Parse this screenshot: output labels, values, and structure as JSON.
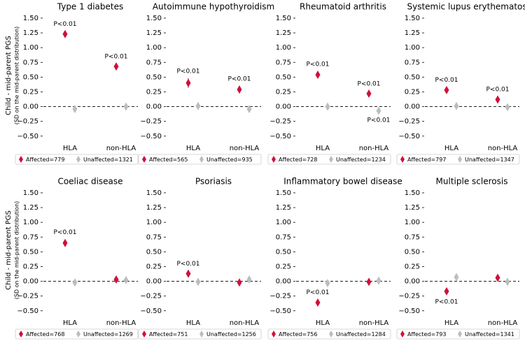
{
  "chart_data": [
    {
      "type": "scatter",
      "title": "Type 1 diabetes",
      "ylabel": [
        "Child - mid-parent PGS",
        "(SD on the mid-parent distribution)"
      ],
      "categories": [
        "HLA",
        "non-HLA"
      ],
      "series": [
        {
          "name": "Affected=779",
          "color": "#d0103a",
          "values": [
            1.23,
            0.68
          ],
          "errors": [
            0.05,
            0.05
          ]
        },
        {
          "name": "Unaffected=1321",
          "color": "#bdbdbd",
          "values": [
            -0.04,
            0.0
          ],
          "errors": [
            0.03,
            0.03
          ]
        }
      ],
      "annotations": [
        {
          "text": "P<0.01",
          "category": "HLA",
          "series": "Affected=779",
          "position": "above"
        },
        {
          "text": "P<0.01",
          "category": "non-HLA",
          "series": "Affected=779",
          "position": "above"
        }
      ],
      "ylim": [
        -0.55,
        1.6
      ],
      "yticks": [
        {
          "value": 1.5,
          "label": "1.50"
        },
        {
          "value": 1.25,
          "label": "1.25"
        },
        {
          "value": 1.0,
          "label": "1.00"
        },
        {
          "value": 0.75,
          "label": "0.75"
        },
        {
          "value": 0.5,
          "label": "0.50"
        },
        {
          "value": 0.25,
          "label": "0.25"
        },
        {
          "value": 0,
          "label": "0.00"
        },
        {
          "value": -0.25,
          "label": "−0.25"
        },
        {
          "value": -0.5,
          "label": "−0.50"
        }
      ],
      "reference_line": 0
    },
    {
      "type": "scatter",
      "title": "Autoimmune hypothyroidism",
      "categories": [
        "HLA",
        "non-HLA"
      ],
      "series": [
        {
          "name": "Affected=565",
          "color": "#d0103a",
          "values": [
            0.4,
            0.29
          ],
          "errors": [
            0.08,
            0.06
          ]
        },
        {
          "name": "Unaffected=935",
          "color": "#bdbdbd",
          "values": [
            0.01,
            -0.04
          ],
          "errors": [
            0.04,
            0.04
          ]
        }
      ],
      "annotations": [
        {
          "text": "P<0.01",
          "category": "HLA",
          "series": "Affected=565",
          "position": "above"
        },
        {
          "text": "P<0.01",
          "category": "non-HLA",
          "series": "Affected=565",
          "position": "above"
        }
      ],
      "ylim": [
        -0.55,
        1.6
      ],
      "yticks": [
        {
          "value": 1.5,
          "label": "1.50"
        },
        {
          "value": 1.25,
          "label": "1.25"
        },
        {
          "value": 1.0,
          "label": "1.00"
        },
        {
          "value": 0.75,
          "label": "0.75"
        },
        {
          "value": 0.5,
          "label": "0.50"
        },
        {
          "value": 0.25,
          "label": "0.25"
        },
        {
          "value": 0,
          "label": "0.00"
        },
        {
          "value": -0.25,
          "label": "−0.25"
        },
        {
          "value": -0.5,
          "label": "−0.50"
        }
      ],
      "reference_line": 0
    },
    {
      "type": "scatter",
      "title": "Rheumatoid arthritis",
      "categories": [
        "HLA",
        "non-HLA"
      ],
      "series": [
        {
          "name": "Affected=728",
          "color": "#d0103a",
          "values": [
            0.54,
            0.22
          ],
          "errors": [
            0.06,
            0.05
          ]
        },
        {
          "name": "Unaffected=1234",
          "color": "#bdbdbd",
          "values": [
            0.0,
            -0.07
          ],
          "errors": [
            0.03,
            0.03
          ]
        }
      ],
      "annotations": [
        {
          "text": "P<0.01",
          "category": "HLA",
          "series": "Affected=728",
          "position": "above"
        },
        {
          "text": "P<0.01",
          "category": "non-HLA",
          "series": "Affected=728",
          "position": "above"
        },
        {
          "text": "P<0.01",
          "category": "non-HLA",
          "series": "Unaffected=1234",
          "position": "below"
        }
      ],
      "ylim": [
        -0.55,
        1.6
      ],
      "yticks": [
        {
          "value": 1.5,
          "label": "1.50"
        },
        {
          "value": 1.25,
          "label": "1.25"
        },
        {
          "value": 1.0,
          "label": "1.00"
        },
        {
          "value": 0.75,
          "label": "0.75"
        },
        {
          "value": 0.5,
          "label": "0.50"
        },
        {
          "value": 0.25,
          "label": "0.25"
        },
        {
          "value": 0,
          "label": "0.00"
        },
        {
          "value": -0.25,
          "label": "−0.25"
        },
        {
          "value": -0.5,
          "label": "−0.50"
        }
      ],
      "reference_line": 0
    },
    {
      "type": "scatter",
      "title": "Systemic lupus erythematosus",
      "categories": [
        "HLA",
        "non-HLA"
      ],
      "series": [
        {
          "name": "Affected=797",
          "color": "#d0103a",
          "values": [
            0.28,
            0.12
          ],
          "errors": [
            0.05,
            0.05
          ]
        },
        {
          "name": "Unaffected=1347",
          "color": "#bdbdbd",
          "values": [
            0.01,
            -0.01
          ],
          "errors": [
            0.03,
            0.03
          ]
        }
      ],
      "annotations": [
        {
          "text": "P<0.01",
          "category": "HLA",
          "series": "Affected=797",
          "position": "above"
        },
        {
          "text": "P<0.01",
          "category": "non-HLA",
          "series": "Affected=797",
          "position": "above"
        }
      ],
      "ylim": [
        -0.55,
        1.6
      ],
      "yticks": [
        {
          "value": 1.5,
          "label": "1.50"
        },
        {
          "value": 1.25,
          "label": "1.25"
        },
        {
          "value": 1.0,
          "label": "1.00"
        },
        {
          "value": 0.75,
          "label": "0.75"
        },
        {
          "value": 0.5,
          "label": "0.50"
        },
        {
          "value": 0.25,
          "label": "0.25"
        },
        {
          "value": 0,
          "label": "0.00"
        },
        {
          "value": -0.25,
          "label": "−0.25"
        },
        {
          "value": -0.5,
          "label": "−0.50"
        }
      ],
      "reference_line": 0
    },
    {
      "type": "scatter",
      "title": "Coeliac disease",
      "ylabel": [
        "Child - mid-parent PGS",
        "(SD on the mid-parent distribution)"
      ],
      "categories": [
        "HLA",
        "non-HLA"
      ],
      "series": [
        {
          "name": "Affected=768",
          "color": "#d0103a",
          "values": [
            0.65,
            0.03
          ],
          "errors": [
            0.06,
            0.04
          ]
        },
        {
          "name": "Unaffected=1269",
          "color": "#bdbdbd",
          "values": [
            -0.02,
            0.02
          ],
          "errors": [
            0.03,
            0.03
          ]
        }
      ],
      "annotations": [
        {
          "text": "P<0.01",
          "category": "HLA",
          "series": "Affected=768",
          "position": "above"
        }
      ],
      "ylim": [
        -0.55,
        1.6
      ],
      "yticks": [
        {
          "value": 1.5,
          "label": "1.50"
        },
        {
          "value": 1.25,
          "label": "1.25"
        },
        {
          "value": 1.0,
          "label": "1.00"
        },
        {
          "value": 0.75,
          "label": "0.75"
        },
        {
          "value": 0.5,
          "label": "0.50"
        },
        {
          "value": 0.25,
          "label": "0.25"
        },
        {
          "value": 0,
          "label": "0.00"
        },
        {
          "value": -0.25,
          "label": "−0.25"
        },
        {
          "value": -0.5,
          "label": "−0.50"
        }
      ],
      "reference_line": 0
    },
    {
      "type": "scatter",
      "title": "Psoriasis",
      "categories": [
        "HLA",
        "non-HLA"
      ],
      "series": [
        {
          "name": "Affected=751",
          "color": "#d0103a",
          "values": [
            0.13,
            -0.02
          ],
          "errors": [
            0.05,
            0.04
          ]
        },
        {
          "name": "Unaffected=1256",
          "color": "#bdbdbd",
          "values": [
            -0.01,
            0.03
          ],
          "errors": [
            0.03,
            0.03
          ]
        }
      ],
      "annotations": [
        {
          "text": "P<0.01",
          "category": "HLA",
          "series": "Affected=751",
          "position": "above"
        }
      ],
      "ylim": [
        -0.55,
        1.6
      ],
      "yticks": [
        {
          "value": 1.5,
          "label": "1.50"
        },
        {
          "value": 1.25,
          "label": "1.25"
        },
        {
          "value": 1.0,
          "label": "1.00"
        },
        {
          "value": 0.75,
          "label": "0.75"
        },
        {
          "value": 0.5,
          "label": "0.50"
        },
        {
          "value": 0.25,
          "label": "0.25"
        },
        {
          "value": 0,
          "label": "0.00"
        },
        {
          "value": -0.25,
          "label": "−0.25"
        },
        {
          "value": -0.5,
          "label": "−0.50"
        }
      ],
      "reference_line": 0
    },
    {
      "type": "scatter",
      "title": "Inflammatory bowel disease",
      "categories": [
        "HLA",
        "non-HLA"
      ],
      "series": [
        {
          "name": "Affected=756",
          "color": "#d0103a",
          "values": [
            -0.36,
            -0.01
          ],
          "errors": [
            0.05,
            0.04
          ]
        },
        {
          "name": "Unaffected=1284",
          "color": "#bdbdbd",
          "values": [
            -0.03,
            0.01
          ],
          "errors": [
            0.03,
            0.03
          ]
        }
      ],
      "annotations": [
        {
          "text": "P<0.01",
          "category": "HLA",
          "series": "Affected=756",
          "position": "above"
        }
      ],
      "ylim": [
        -0.55,
        1.6
      ],
      "yticks": [
        {
          "value": 1.5,
          "label": "1.50"
        },
        {
          "value": 1.25,
          "label": "1.25"
        },
        {
          "value": 1.0,
          "label": "1.00"
        },
        {
          "value": 0.75,
          "label": "0.75"
        },
        {
          "value": 0.5,
          "label": "0.50"
        },
        {
          "value": 0.25,
          "label": "0.25"
        },
        {
          "value": 0,
          "label": "0.00"
        },
        {
          "value": -0.25,
          "label": "−0.25"
        },
        {
          "value": -0.5,
          "label": "−0.50"
        }
      ],
      "reference_line": 0
    },
    {
      "type": "scatter",
      "title": "Multiple sclerosis",
      "categories": [
        "HLA",
        "non-HLA"
      ],
      "series": [
        {
          "name": "Affected=793",
          "color": "#d0103a",
          "values": [
            -0.17,
            0.06
          ],
          "errors": [
            0.05,
            0.04
          ]
        },
        {
          "name": "Unaffected=1341",
          "color": "#bdbdbd",
          "values": [
            0.07,
            -0.01
          ],
          "errors": [
            0.03,
            0.03
          ]
        }
      ],
      "annotations": [
        {
          "text": "P<0.01",
          "category": "HLA",
          "series": "Affected=793",
          "position": "below"
        }
      ],
      "ylim": [
        -0.55,
        1.6
      ],
      "yticks": [
        {
          "value": 1.5,
          "label": "1.50"
        },
        {
          "value": 1.25,
          "label": "1.25"
        },
        {
          "value": 1.0,
          "label": "1.00"
        },
        {
          "value": 0.75,
          "label": "0.75"
        },
        {
          "value": 0.5,
          "label": "0.50"
        },
        {
          "value": 0.25,
          "label": "0.25"
        },
        {
          "value": 0,
          "label": "0.00"
        },
        {
          "value": -0.25,
          "label": "−0.25"
        },
        {
          "value": -0.5,
          "label": "−0.50"
        }
      ],
      "reference_line": 0
    }
  ]
}
